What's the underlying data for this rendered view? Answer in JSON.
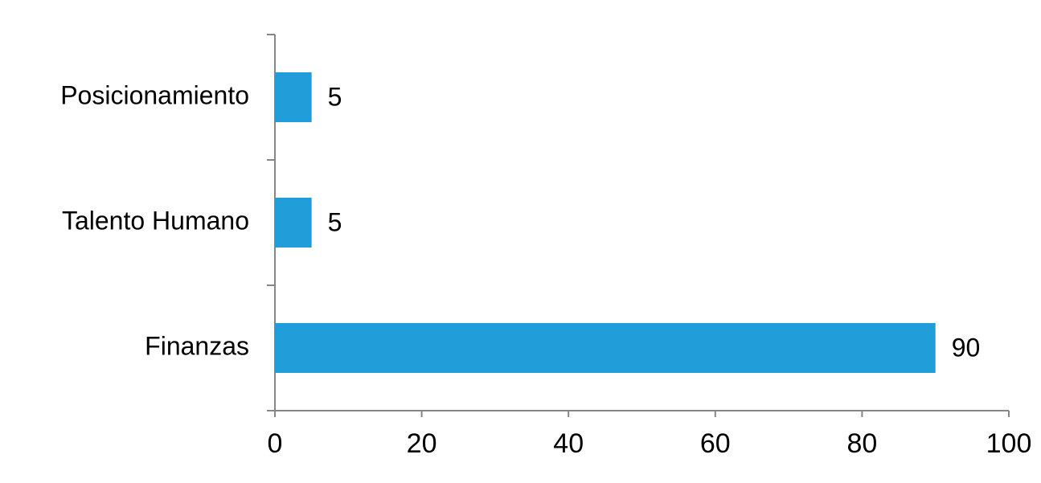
{
  "chart_data": {
    "type": "barh",
    "categories": [
      "Posicionamiento",
      "Talento Humano",
      "Finanzas"
    ],
    "values": [
      5,
      5,
      90
    ],
    "color": "#1f9ed9",
    "xlim": [
      0,
      100
    ],
    "xticks": [
      0,
      20,
      40,
      60,
      80,
      100
    ]
  }
}
